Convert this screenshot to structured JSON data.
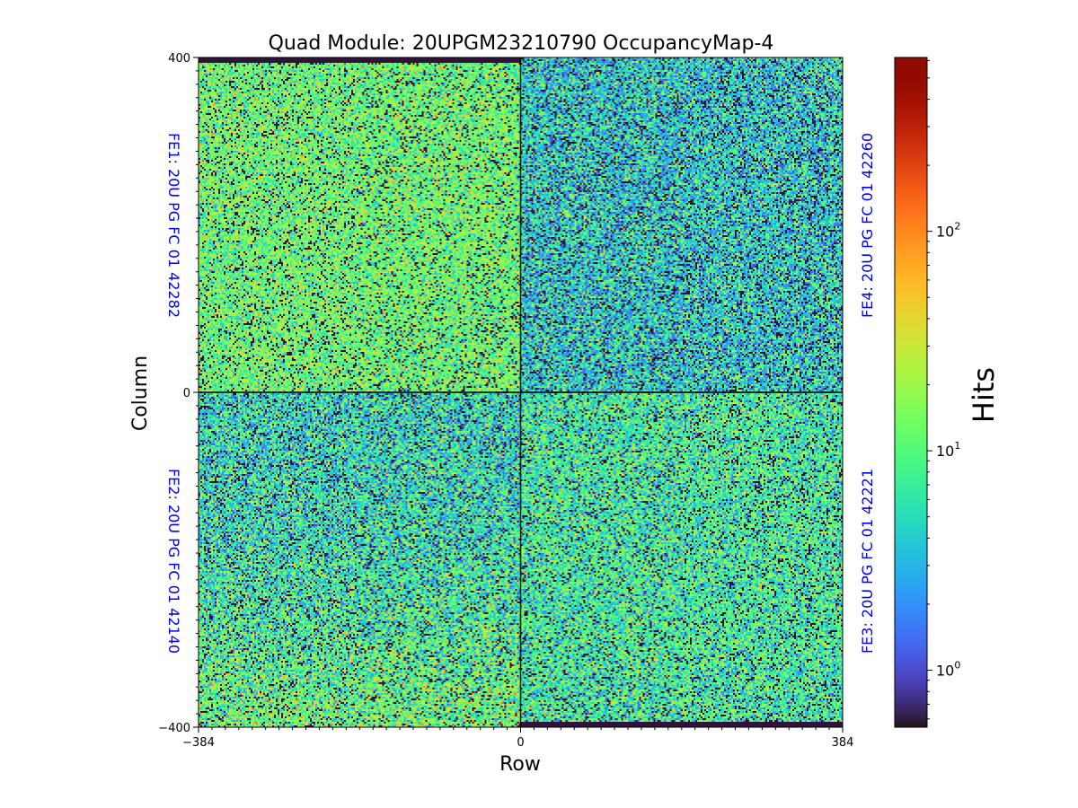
{
  "chart_data": {
    "type": "heatmap",
    "title": "Quad Module: 20UPGM23210790 OccupancyMap-4",
    "xlabel": "Row",
    "ylabel": "Column",
    "xlim": [
      -384,
      384
    ],
    "ylim": [
      -400,
      400
    ],
    "x_ticks": [
      "−384",
      "0",
      "384"
    ],
    "y_ticks": [
      "400",
      "0",
      "−400"
    ],
    "x_tick_values": [
      -384,
      0,
      384
    ],
    "y_tick_values": [
      400,
      0,
      -400
    ],
    "colormap": "turbo",
    "colorbar": {
      "label": "Hits",
      "scale": "log",
      "range": [
        0.55,
        620
      ],
      "ticks": [
        {
          "value": 1,
          "base": "10",
          "exp": "0"
        },
        {
          "value": 10,
          "base": "10",
          "exp": "1"
        },
        {
          "value": 100,
          "base": "10",
          "exp": "2"
        }
      ]
    },
    "quadrants": [
      {
        "name": "FE1",
        "label": "FE1: 20U PG FC 01 42282",
        "position": "top-left",
        "typical_hits": 12,
        "spread": 0.9,
        "dead_band": "top"
      },
      {
        "name": "FE4",
        "label": "FE4: 20U PG FC 01 42260",
        "position": "top-right",
        "typical_hits": 4,
        "spread": 1.1,
        "dead_band": ""
      },
      {
        "name": "FE2",
        "label": "FE2: 20U PG FC 01 42140",
        "position": "bottom-left",
        "typical_hits": 5,
        "spread": 1.1,
        "dead_band": ""
      },
      {
        "name": "FE3",
        "label": "FE3: 20U PG FC 01 42221",
        "position": "bottom-right",
        "typical_hits": 7,
        "spread": 1.0,
        "dead_band": "bottom"
      }
    ],
    "label_color": "#0000ff"
  }
}
